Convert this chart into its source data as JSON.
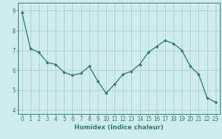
{
  "title": "",
  "xlabel": "Humidex (Indice chaleur)",
  "x": [
    0,
    1,
    2,
    3,
    4,
    5,
    6,
    7,
    8,
    9,
    10,
    11,
    12,
    13,
    14,
    15,
    16,
    17,
    18,
    19,
    20,
    21,
    22,
    23
  ],
  "y": [
    8.9,
    7.1,
    6.9,
    6.4,
    6.3,
    5.9,
    5.75,
    5.85,
    6.2,
    5.45,
    4.85,
    5.3,
    5.8,
    5.95,
    6.3,
    6.9,
    7.2,
    7.5,
    7.35,
    7.0,
    6.2,
    5.8,
    4.6,
    4.4
  ],
  "line_color": "#2e7d6e",
  "marker": "D",
  "marker_size": 2.0,
  "bg_color": "#ceecea",
  "grid_color": "#aacfcc",
  "tick_label_color": "#2e7d6e",
  "axis_color": "#2e7d6e",
  "xlabel_color": "#2e7d6e",
  "ylim": [
    3.8,
    9.4
  ],
  "yticks": [
    4,
    5,
    6,
    7,
    8,
    9
  ],
  "xticks": [
    0,
    1,
    2,
    3,
    4,
    5,
    6,
    7,
    8,
    9,
    10,
    11,
    12,
    13,
    14,
    15,
    16,
    17,
    18,
    19,
    20,
    21,
    22,
    23
  ],
  "line_width": 1.0,
  "label_fontsize": 6.5,
  "tick_fontsize": 5.5
}
